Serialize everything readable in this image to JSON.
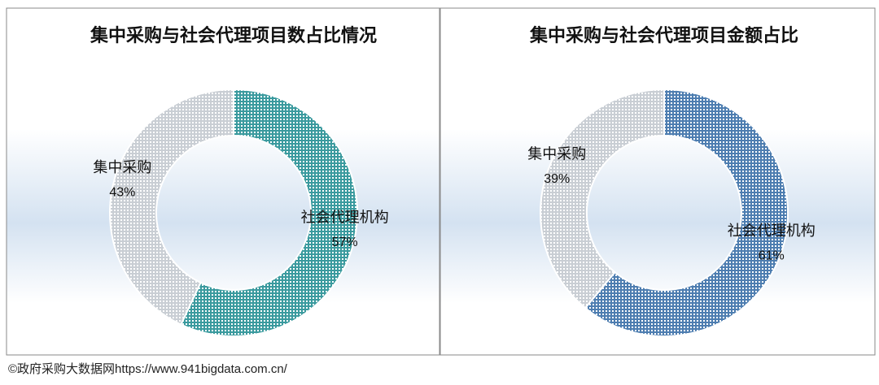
{
  "chart_data": [
    {
      "type": "pie",
      "title": "集中采购与社会代理项目数占比情况",
      "categories": [
        "社会代理机构",
        "集中采购"
      ],
      "values": [
        57,
        43
      ],
      "value_labels": [
        "57%",
        "43%"
      ],
      "colors": [
        "#3a9a9e",
        "#c9ced4"
      ]
    },
    {
      "type": "pie",
      "title": "集中采购与社会代理项目金额占比",
      "categories": [
        "社会代理机构",
        "集中采购"
      ],
      "values": [
        61,
        39
      ],
      "value_labels": [
        "61%",
        "39%"
      ],
      "colors": [
        "#4d7db0",
        "#c9ced4"
      ]
    }
  ],
  "source": "©政府采购大数据网https://www.941bigdata.com.cn/"
}
